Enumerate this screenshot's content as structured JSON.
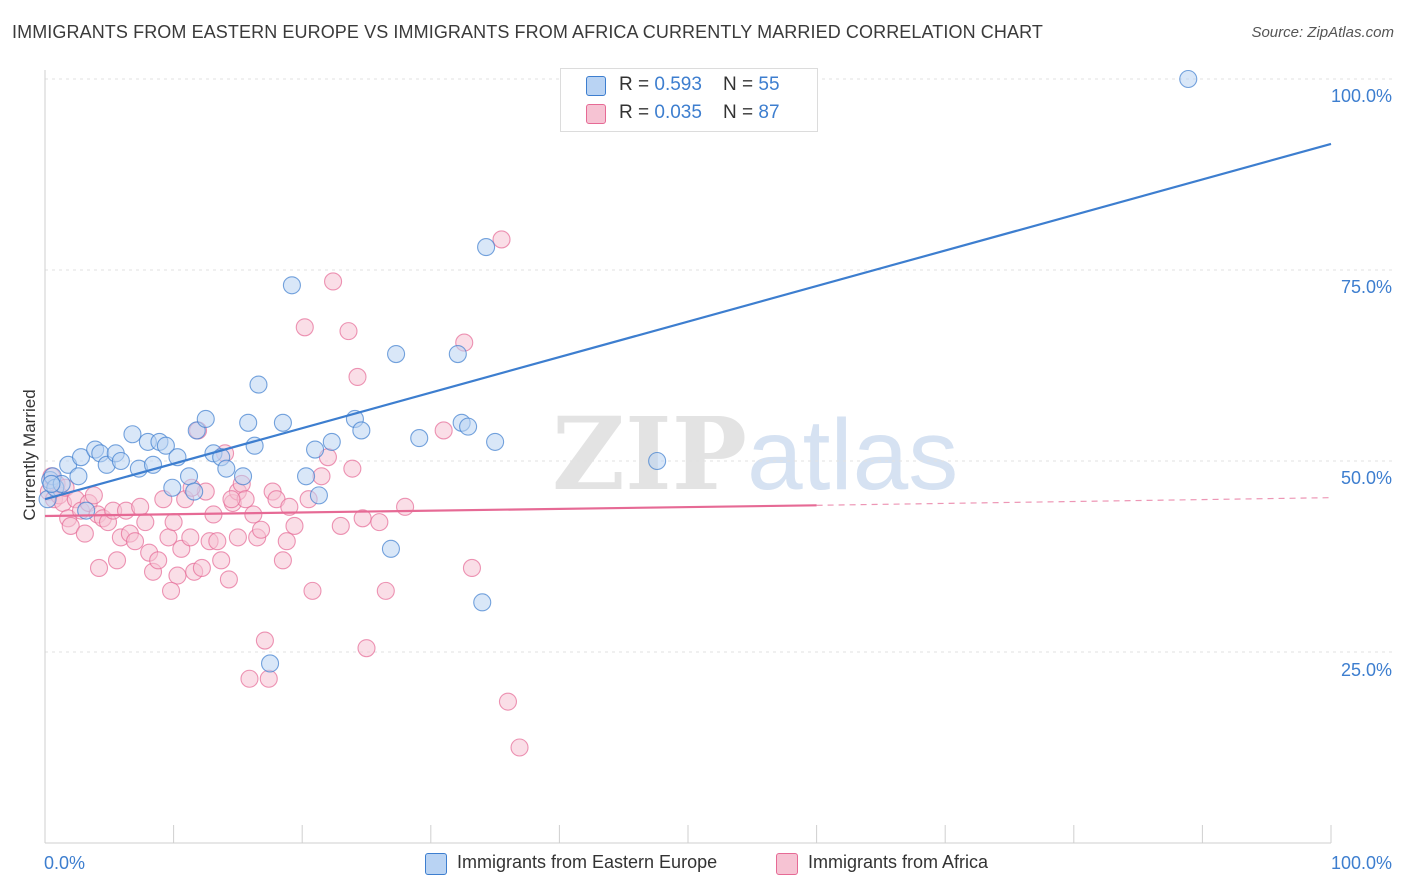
{
  "title": "IMMIGRANTS FROM EASTERN EUROPE VS IMMIGRANTS FROM AFRICA CURRENTLY MARRIED CORRELATION CHART",
  "source": "Source: ZipAtlas.com",
  "watermark": {
    "zip": "ZIP",
    "atlas": "atlas"
  },
  "legend_top": [
    {
      "r_label": "R = ",
      "r_value": "0.593",
      "n_label": "N = ",
      "n_value": "55"
    },
    {
      "r_label": "R = ",
      "r_value": "0.035",
      "n_label": "N = ",
      "n_value": "87"
    }
  ],
  "legend_bottom": [
    "Immigrants from Eastern Europe",
    "Immigrants from Africa"
  ],
  "y_ticks": [
    "100.0%",
    "75.0%",
    "50.0%",
    "25.0%"
  ],
  "x_ticks": [
    "0.0%",
    "100.0%"
  ],
  "chart_data": {
    "type": "scatter",
    "title": "IMMIGRANTS FROM EASTERN EUROPE VS IMMIGRANTS FROM AFRICA CURRENTLY MARRIED CORRELATION CHART",
    "xlabel": "",
    "ylabel": "Currently Married",
    "xlim": [
      0,
      100
    ],
    "ylim": [
      0,
      102
    ],
    "grid": true,
    "legend": "bottom",
    "colors": {
      "blue": "#3d7ecf",
      "blue_fill": "#b9d3f3",
      "pink": "#e66a95",
      "pink_fill": "#f6c3d3"
    },
    "series": [
      {
        "name": "Immigrants from Eastern Europe",
        "color": "#3d7ecf",
        "r": 0.593,
        "n": 55,
        "trend": {
          "x": [
            0,
            100
          ],
          "y": [
            45.0,
            91.5
          ],
          "dash_from": null
        },
        "points": [
          [
            0.2,
            45
          ],
          [
            0.4,
            47.5
          ],
          [
            0.6,
            48
          ],
          [
            0.8,
            46.5
          ],
          [
            1.3,
            47
          ],
          [
            1.8,
            49.5
          ],
          [
            2.6,
            48
          ],
          [
            2.8,
            50.5
          ],
          [
            3.2,
            43.5
          ],
          [
            3.9,
            51.5
          ],
          [
            4.3,
            51
          ],
          [
            4.8,
            49.5
          ],
          [
            5.5,
            51
          ],
          [
            5.9,
            50
          ],
          [
            6.8,
            53.5
          ],
          [
            7.3,
            49
          ],
          [
            8.0,
            52.5
          ],
          [
            8.4,
            49.5
          ],
          [
            8.9,
            52.5
          ],
          [
            9.4,
            52
          ],
          [
            9.9,
            46.5
          ],
          [
            10.3,
            50.5
          ],
          [
            11.2,
            48
          ],
          [
            11.6,
            46
          ],
          [
            11.8,
            54
          ],
          [
            12.5,
            55.5
          ],
          [
            13.1,
            51
          ],
          [
            13.7,
            50.5
          ],
          [
            14.1,
            49
          ],
          [
            15.4,
            48
          ],
          [
            15.8,
            55
          ],
          [
            16.3,
            52
          ],
          [
            16.6,
            60
          ],
          [
            17.5,
            23.5
          ],
          [
            18.5,
            55
          ],
          [
            19.2,
            73
          ],
          [
            20.3,
            48
          ],
          [
            21.0,
            51.5
          ],
          [
            21.3,
            45.5
          ],
          [
            22.3,
            52.5
          ],
          [
            24.1,
            55.5
          ],
          [
            24.6,
            54
          ],
          [
            26.9,
            38.5
          ],
          [
            27.3,
            64
          ],
          [
            29.1,
            53
          ],
          [
            32.1,
            64
          ],
          [
            32.4,
            55
          ],
          [
            32.9,
            54.5
          ],
          [
            34.0,
            31.5
          ],
          [
            34.3,
            78
          ],
          [
            35.0,
            52.5
          ],
          [
            47.6,
            50
          ],
          [
            46.9,
            100
          ],
          [
            88.9,
            100
          ],
          [
            0.5,
            47
          ]
        ]
      },
      {
        "name": "Immigrants from Africa",
        "color": "#e66a95",
        "r": 0.035,
        "n": 87,
        "trend": {
          "x": [
            0,
            60,
            100
          ],
          "y": [
            42.8,
            44.2,
            45.2
          ],
          "dash_from": 60
        },
        "points": [
          [
            0.3,
            46
          ],
          [
            0.5,
            48
          ],
          [
            0.7,
            45
          ],
          [
            0.9,
            47
          ],
          [
            1.1,
            45.5
          ],
          [
            1.4,
            44.5
          ],
          [
            1.6,
            46.5
          ],
          [
            1.8,
            42.5
          ],
          [
            2.0,
            41.5
          ],
          [
            2.4,
            45
          ],
          [
            2.8,
            43.5
          ],
          [
            3.1,
            40.5
          ],
          [
            3.4,
            44.5
          ],
          [
            3.8,
            45.5
          ],
          [
            4.1,
            43
          ],
          [
            4.5,
            42.5
          ],
          [
            4.9,
            42
          ],
          [
            5.3,
            43.5
          ],
          [
            5.6,
            37
          ],
          [
            5.9,
            40
          ],
          [
            6.3,
            43.5
          ],
          [
            6.6,
            40.5
          ],
          [
            7.0,
            39.5
          ],
          [
            7.4,
            44
          ],
          [
            7.8,
            42
          ],
          [
            8.1,
            38
          ],
          [
            8.4,
            35.5
          ],
          [
            8.8,
            37
          ],
          [
            9.2,
            45
          ],
          [
            9.6,
            40
          ],
          [
            10.0,
            42
          ],
          [
            10.3,
            35
          ],
          [
            10.6,
            38.5
          ],
          [
            10.9,
            45
          ],
          [
            11.3,
            40
          ],
          [
            11.6,
            35.5
          ],
          [
            11.9,
            54
          ],
          [
            12.2,
            36
          ],
          [
            12.5,
            46
          ],
          [
            12.8,
            39.5
          ],
          [
            13.1,
            43
          ],
          [
            13.4,
            39.5
          ],
          [
            13.7,
            37
          ],
          [
            14.0,
            51
          ],
          [
            14.3,
            34.5
          ],
          [
            14.6,
            44.5
          ],
          [
            15.0,
            46
          ],
          [
            15.3,
            47
          ],
          [
            15.6,
            45
          ],
          [
            15.9,
            21.5
          ],
          [
            16.2,
            43
          ],
          [
            16.5,
            40
          ],
          [
            16.8,
            41
          ],
          [
            17.1,
            26.5
          ],
          [
            17.4,
            21.5
          ],
          [
            17.7,
            46
          ],
          [
            18.0,
            45
          ],
          [
            18.5,
            37
          ],
          [
            19.0,
            44
          ],
          [
            19.4,
            41.5
          ],
          [
            20.2,
            67.5
          ],
          [
            20.5,
            45
          ],
          [
            20.8,
            33
          ],
          [
            21.5,
            48
          ],
          [
            22.0,
            50.5
          ],
          [
            22.4,
            73.5
          ],
          [
            23.0,
            41.5
          ],
          [
            23.6,
            67
          ],
          [
            23.9,
            49
          ],
          [
            24.3,
            61
          ],
          [
            24.7,
            42.5
          ],
          [
            25.0,
            25.5
          ],
          [
            26.0,
            42
          ],
          [
            26.5,
            33
          ],
          [
            28.0,
            44
          ],
          [
            31.0,
            54
          ],
          [
            32.6,
            65.5
          ],
          [
            33.2,
            36
          ],
          [
            35.5,
            79
          ],
          [
            36.0,
            18.5
          ],
          [
            36.9,
            12.5
          ],
          [
            15.0,
            40
          ],
          [
            9.8,
            33
          ],
          [
            4.2,
            36
          ],
          [
            14.5,
            45
          ],
          [
            11.4,
            46.5
          ],
          [
            18.8,
            39.5
          ]
        ]
      }
    ]
  }
}
